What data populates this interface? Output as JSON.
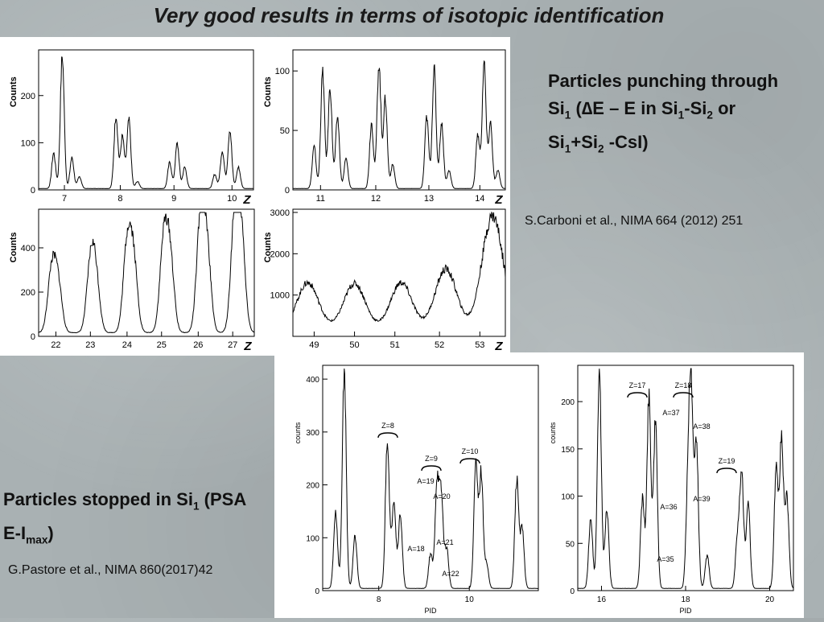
{
  "slide": {
    "title": "Very good results in terms of isotopic identification"
  },
  "top_text": {
    "line1": "Particles punching through",
    "line2_parts": [
      "Si",
      "1",
      " (",
      "∆",
      "E – E in Si",
      "1",
      "-Si",
      "2",
      " or"
    ],
    "line3_parts": [
      "Si",
      "1",
      "+Si",
      "2",
      " -CsI)"
    ],
    "reference": "S.Carboni et al., NIMA 664 (2012) 251"
  },
  "bottom_text": {
    "line1_parts": [
      "Particles stopped in Si",
      "1",
      " (PSA"
    ],
    "line2_parts": [
      "E-I",
      "max",
      ")"
    ],
    "reference": "G.Pastore et al., NIMA 860(2017)42"
  },
  "chart_data": [
    {
      "type": "line",
      "ylabel": "Counts",
      "xlabel": "Z",
      "x_ticks": [
        "7",
        "8",
        "9",
        "10"
      ],
      "y_ticks": [
        "0",
        "100",
        "200"
      ],
      "ylim": [
        0,
        290
      ],
      "peaks": [
        [
          0.07,
          75
        ],
        [
          0.11,
          280
        ],
        [
          0.155,
          65
        ],
        [
          0.19,
          25
        ],
        [
          0.36,
          155
        ],
        [
          0.39,
          110
        ],
        [
          0.42,
          145
        ],
        [
          0.46,
          15
        ],
        [
          0.61,
          55
        ],
        [
          0.645,
          95
        ],
        [
          0.68,
          45
        ],
        [
          0.82,
          30
        ],
        [
          0.855,
          80
        ],
        [
          0.89,
          125
        ],
        [
          0.93,
          45
        ]
      ]
    },
    {
      "type": "line",
      "ylabel": "Counts",
      "xlabel": "Z",
      "x_ticks": [
        "11",
        "12",
        "13",
        "14"
      ],
      "y_ticks": [
        "0",
        "50",
        "100"
      ],
      "ylim": [
        0,
        115
      ],
      "peaks": [
        [
          0.1,
          35
        ],
        [
          0.14,
          98
        ],
        [
          0.175,
          85
        ],
        [
          0.21,
          60
        ],
        [
          0.25,
          25
        ],
        [
          0.37,
          55
        ],
        [
          0.405,
          105
        ],
        [
          0.435,
          75
        ],
        [
          0.47,
          20
        ],
        [
          0.63,
          60
        ],
        [
          0.665,
          100
        ],
        [
          0.7,
          55
        ],
        [
          0.735,
          15
        ],
        [
          0.87,
          45
        ],
        [
          0.9,
          105
        ],
        [
          0.93,
          55
        ],
        [
          0.965,
          15
        ]
      ]
    },
    {
      "type": "line",
      "ylabel": "Counts",
      "xlabel": "Z",
      "x_ticks": [
        "22",
        "23",
        "24",
        "25",
        "26",
        "27"
      ],
      "y_ticks": [
        "0",
        "200",
        "400"
      ],
      "ylim": [
        0,
        560
      ],
      "peaks": [
        [
          0.06,
          270
        ],
        [
          0.09,
          220
        ],
        [
          0.24,
          280
        ],
        [
          0.265,
          240
        ],
        [
          0.41,
          380
        ],
        [
          0.44,
          320
        ],
        [
          0.58,
          400
        ],
        [
          0.61,
          330
        ],
        [
          0.75,
          480
        ],
        [
          0.78,
          380
        ],
        [
          0.91,
          530
        ],
        [
          0.94,
          420
        ]
      ]
    },
    {
      "type": "line",
      "ylabel": "Counts",
      "xlabel": "Z",
      "x_ticks": [
        "49",
        "50",
        "51",
        "52",
        "53"
      ],
      "y_ticks": [
        "1000",
        "2000",
        "3000"
      ],
      "ylim": [
        0,
        3000
      ],
      "peaks": [
        [
          0.07,
          1120
        ],
        [
          0.29,
          1100
        ],
        [
          0.51,
          1120
        ],
        [
          0.72,
          1450
        ],
        [
          0.94,
          2750
        ]
      ]
    },
    {
      "type": "line",
      "ylabel": "counts",
      "xlabel": "PID",
      "x_ticks": [
        "8",
        "10"
      ],
      "y_ticks": [
        "0",
        "100",
        "200",
        "300",
        "400"
      ],
      "ylim": [
        0,
        420
      ],
      "peaks": [
        [
          0.06,
          145
        ],
        [
          0.1,
          415
        ],
        [
          0.15,
          100
        ],
        [
          0.3,
          285
        ],
        [
          0.33,
          170
        ],
        [
          0.36,
          140
        ],
        [
          0.5,
          65
        ],
        [
          0.53,
          200
        ],
        [
          0.55,
          170
        ],
        [
          0.575,
          75
        ],
        [
          0.71,
          230
        ],
        [
          0.735,
          215
        ],
        [
          0.76,
          45
        ],
        [
          0.9,
          205
        ],
        [
          0.925,
          110
        ]
      ],
      "annotations": [
        "Z=8",
        "Z=9",
        "Z=10",
        "A=19",
        "A=20",
        "A=18",
        "A=21",
        "A=22"
      ]
    },
    {
      "type": "line",
      "ylabel": "counts",
      "xlabel": "PID",
      "x_ticks": [
        "16",
        "18",
        "20"
      ],
      "y_ticks": [
        "0",
        "50",
        "100",
        "150",
        "200"
      ],
      "ylim": [
        0,
        235
      ],
      "peaks": [
        [
          0.06,
          75
        ],
        [
          0.1,
          230
        ],
        [
          0.135,
          85
        ],
        [
          0.3,
          95
        ],
        [
          0.33,
          205
        ],
        [
          0.36,
          175
        ],
        [
          0.51,
          90
        ],
        [
          0.525,
          210
        ],
        [
          0.55,
          155
        ],
        [
          0.6,
          35
        ],
        [
          0.74,
          50
        ],
        [
          0.76,
          120
        ],
        [
          0.79,
          90
        ],
        [
          0.92,
          125
        ],
        [
          0.945,
          155
        ],
        [
          0.97,
          95
        ]
      ],
      "annotations": [
        "Z=17",
        "Z=18",
        "Z=19",
        "A=37",
        "A=38",
        "A=36",
        "A=39",
        "A=35"
      ]
    }
  ]
}
